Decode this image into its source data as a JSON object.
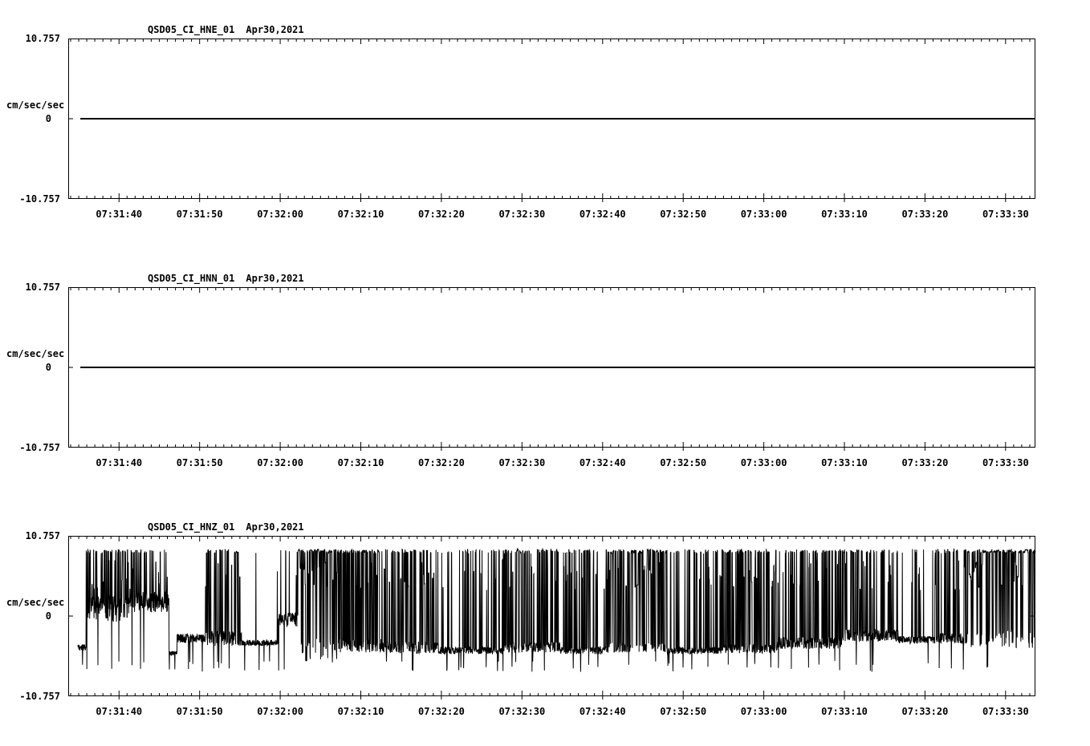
{
  "page": {
    "background": "#ffffff",
    "text_color": "#000000"
  },
  "chart_data": [
    {
      "type": "line",
      "title": "QSD05_CI_HNE_01",
      "date_label": "Apr30,2021",
      "ylabel": "cm/sec/sec",
      "ylim": [
        -10.757,
        10.757
      ],
      "y_tick_labels": [
        "10.757",
        "0",
        "-10.757"
      ],
      "x_tick_labels": [
        "07:31:40",
        "07:31:50",
        "07:32:00",
        "07:32:10",
        "07:32:20",
        "07:32:30",
        "07:32:40",
        "07:32:50",
        "07:33:00",
        "07:33:10",
        "07:33:20",
        "07:33:30"
      ],
      "x_tick_interval_s": 10,
      "grid": false,
      "series": [
        {
          "name": "HNE",
          "shape": "constant",
          "value": 0,
          "start_s": 1.5,
          "description": "flat trace at zero amplitude for the full time window"
        }
      ]
    },
    {
      "type": "line",
      "title": "QSD05_CI_HNN_01",
      "date_label": "Apr30,2021",
      "ylabel": "cm/sec/sec",
      "ylim": [
        -10.757,
        10.757
      ],
      "y_tick_labels": [
        "10.757",
        "0",
        "-10.757"
      ],
      "x_tick_labels": [
        "07:31:40",
        "07:31:50",
        "07:32:00",
        "07:32:10",
        "07:32:20",
        "07:32:30",
        "07:32:40",
        "07:32:50",
        "07:33:00",
        "07:33:10",
        "07:33:20",
        "07:33:30"
      ],
      "x_tick_interval_s": 10,
      "grid": false,
      "series": [
        {
          "name": "HNN",
          "shape": "constant",
          "value": 0,
          "start_s": 1.5,
          "description": "flat trace at zero amplitude for the full time window"
        }
      ]
    },
    {
      "type": "line",
      "title": "QSD05_CI_HNZ_01",
      "date_label": "Apr30,2021",
      "ylabel": "cm/sec/sec",
      "ylim": [
        -10.757,
        10.757
      ],
      "y_tick_labels": [
        "10.757",
        "0",
        "-10.757"
      ],
      "x_tick_labels": [
        "07:31:40",
        "07:31:50",
        "07:32:00",
        "07:32:10",
        "07:32:20",
        "07:32:30",
        "07:32:40",
        "07:32:50",
        "07:33:00",
        "07:33:10",
        "07:33:20",
        "07:33:30"
      ],
      "x_tick_interval_s": 10,
      "grid": false,
      "series": [
        {
          "name": "HNZ",
          "shape": "noisy-clipped",
          "description": "continuous high-amplitude clipped/noisy signal: rapid spikes between a flat clipped level near +8.9 cm/sec/sec and a noisy baseline near -4, with dense solid-black burst regions and occasional quiet low stretches",
          "clip_high": 8.9,
          "clip_low": -6.0,
          "seed": 42,
          "sample_rate_hz": 35,
          "start_s": 1.2,
          "duration_s": 120,
          "segment_fields": [
            "t0_s",
            "t1_s",
            "baseline",
            "noise_amp",
            "spike_rate",
            "max_hold_samples"
          ],
          "segments": [
            [
              1.2,
              2.2,
              -4.2,
              0.4,
              0.0,
              1
            ],
            [
              2.2,
              7.5,
              1.0,
              1.8,
              0.3,
              2
            ],
            [
              7.5,
              12.5,
              2.0,
              1.5,
              0.18,
              2
            ],
            [
              12.5,
              13.5,
              -5.0,
              0.3,
              0.0,
              1
            ],
            [
              13.5,
              17.0,
              -3.0,
              0.6,
              0.04,
              1
            ],
            [
              17.0,
              21.5,
              -3.0,
              1.0,
              0.22,
              3
            ],
            [
              21.5,
              26.0,
              -3.6,
              0.4,
              0.01,
              1
            ],
            [
              26.0,
              28.5,
              -0.5,
              1.0,
              0.06,
              1
            ],
            [
              28.5,
              33.5,
              -4.5,
              1.6,
              0.6,
              4
            ],
            [
              33.5,
              39.0,
              -4.0,
              0.9,
              0.38,
              2
            ],
            [
              39.0,
              46.0,
              -4.2,
              0.8,
              0.3,
              3
            ],
            [
              46.0,
              54.0,
              -4.6,
              0.5,
              0.12,
              2
            ],
            [
              54.0,
              61.0,
              -4.2,
              0.7,
              0.24,
              3
            ],
            [
              61.0,
              67.0,
              -4.6,
              0.5,
              0.16,
              2
            ],
            [
              67.0,
              74.0,
              -4.2,
              0.7,
              0.3,
              4
            ],
            [
              74.0,
              81.0,
              -4.6,
              0.5,
              0.14,
              2
            ],
            [
              81.0,
              88.0,
              -4.4,
              0.6,
              0.3,
              3
            ],
            [
              88.0,
              96.0,
              -3.6,
              0.8,
              0.22,
              2
            ],
            [
              96.0,
              103.0,
              -2.6,
              0.8,
              0.26,
              3
            ],
            [
              103.0,
              107.5,
              -3.2,
              0.5,
              0.08,
              1
            ],
            [
              107.5,
              111.5,
              -3.0,
              0.7,
              0.16,
              2
            ],
            [
              111.5,
              120.0,
              -3.0,
              1.3,
              0.55,
              5
            ]
          ]
        }
      ]
    }
  ]
}
